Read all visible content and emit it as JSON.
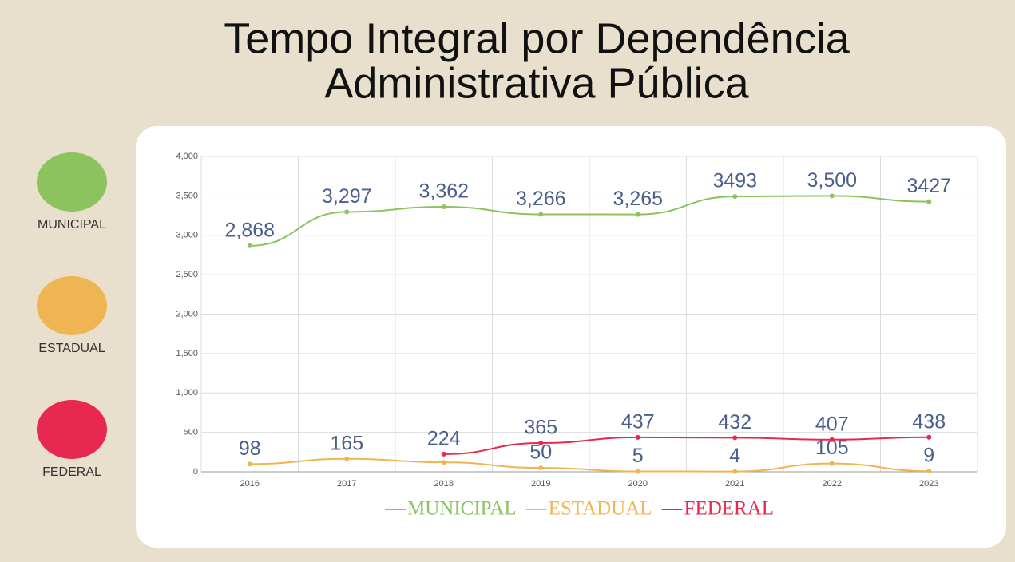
{
  "chart_data": {
    "type": "line",
    "title": "Tempo Integral por Dependência",
    "subtitle": "Administrativa Pública",
    "categories": [
      "2016",
      "2017",
      "2018",
      "2019",
      "2020",
      "2021",
      "2022",
      "2023"
    ],
    "series": [
      {
        "name": "MUNICIPAL",
        "color": "#8dc35f",
        "values": [
          2868,
          3297,
          3362,
          3266,
          3265,
          3493,
          3500,
          3427
        ],
        "value_labels": [
          "2,868",
          "3,297",
          "3,362",
          "3,266",
          "3,265",
          "3493",
          "3,500",
          "3427"
        ]
      },
      {
        "name": "ESTADUAL",
        "color": "#f0b553",
        "values": [
          98,
          165,
          120,
          50,
          5,
          4,
          105,
          9
        ],
        "value_labels": [
          "98",
          "165",
          null,
          "50",
          "5",
          "4",
          "105",
          "9"
        ]
      },
      {
        "name": "FEDERAL",
        "color": "#e8294f",
        "values": [
          null,
          null,
          224,
          365,
          437,
          432,
          407,
          438
        ]
      }
    ],
    "ylim": [
      0,
      4000
    ],
    "yticks": [
      0,
      500,
      {
        "value": 1000,
        "label": "1,000"
      },
      {
        "value": 1500,
        "label": "1,500"
      },
      {
        "value": 2000,
        "label": "2,000"
      },
      {
        "value": 2500,
        "label": "2,500"
      },
      {
        "value": 3000,
        "label": "3,000"
      },
      {
        "value": 3500,
        "label": "3,500"
      },
      {
        "value": 4000,
        "label": "4,000"
      }
    ],
    "grid": true
  }
}
